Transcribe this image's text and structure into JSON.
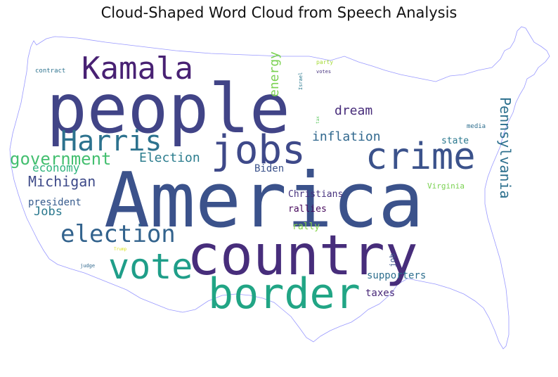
{
  "title": "Cloud-Shaped Word Cloud from Speech Analysis",
  "words": [
    {
      "text": "America",
      "color": "#3b528b"
    },
    {
      "text": "people",
      "color": "#414487"
    },
    {
      "text": "country",
      "color": "#472d7b"
    },
    {
      "text": "border",
      "color": "#21a585"
    },
    {
      "text": "crime",
      "color": "#3b528b"
    },
    {
      "text": "jobs",
      "color": "#3e4989"
    },
    {
      "text": "vote",
      "color": "#1f9e89"
    },
    {
      "text": "Kamala",
      "color": "#482173"
    },
    {
      "text": "Harris",
      "color": "#2c728e"
    },
    {
      "text": "election",
      "color": "#33638d"
    },
    {
      "text": "government",
      "color": "#44bf70"
    },
    {
      "text": "Michigan",
      "color": "#3e4a89"
    },
    {
      "text": "Pennsylvania",
      "color": "#2d708e"
    },
    {
      "text": "Election",
      "color": "#2c7d8e"
    },
    {
      "text": "economy",
      "color": "#2fb47c"
    },
    {
      "text": "dream",
      "color": "#472c7a"
    },
    {
      "text": "inflation",
      "color": "#31688e"
    },
    {
      "text": "energy",
      "color": "#7ad151"
    },
    {
      "text": "Jobs",
      "color": "#2a788e"
    },
    {
      "text": "president",
      "color": "#375b8d"
    },
    {
      "text": "Biden",
      "color": "#3b528b"
    },
    {
      "text": "Christians",
      "color": "#46327e"
    },
    {
      "text": "rallies",
      "color": "#46085c"
    },
    {
      "text": "rally",
      "color": "#86d549"
    },
    {
      "text": "supporters",
      "color": "#2e6f8e"
    },
    {
      "text": "taxes",
      "color": "#482878"
    },
    {
      "text": "job",
      "color": "#3b528b"
    },
    {
      "text": "state",
      "color": "#2a788e"
    },
    {
      "text": "Virginia",
      "color": "#7ad151"
    },
    {
      "text": "media",
      "color": "#2e6e8e"
    },
    {
      "text": "contract",
      "color": "#2c728e"
    },
    {
      "text": "party",
      "color": "#a5db36"
    },
    {
      "text": "Israel",
      "color": "#2a788e"
    },
    {
      "text": "votes",
      "color": "#46327e"
    },
    {
      "text": "tax",
      "color": "#5ec962"
    },
    {
      "text": "judge",
      "color": "#31688e"
    },
    {
      "text": "Trump",
      "color": "#d8e219"
    }
  ],
  "outline_color": "#9999ff"
}
